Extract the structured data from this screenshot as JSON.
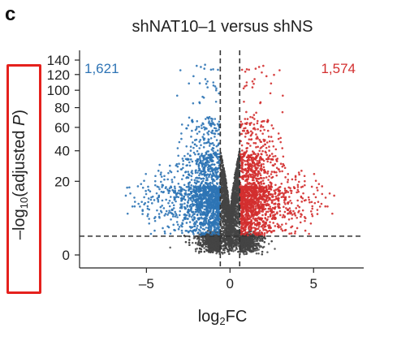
{
  "panel": {
    "letter": "c"
  },
  "annotation": {
    "box_color": "#e5211d"
  },
  "chart_data": {
    "type": "scatter",
    "title": "shNAT10–1 versus shNS",
    "xlabel_main": "log",
    "xlabel_sub": "2",
    "xlabel_tail": "FC",
    "ylabel_prefix": "–log",
    "ylabel_sub": "10",
    "ylabel_mid": "(adjusted ",
    "ylabel_italic": "P",
    "ylabel_suffix": ")",
    "xlim": [
      -9,
      8
    ],
    "x_ticks": [
      -5,
      0,
      5
    ],
    "x_tick_labels": [
      "–5",
      "0",
      "5"
    ],
    "y_ticks": [
      0,
      20,
      40,
      60,
      80,
      100,
      120,
      140
    ],
    "y_tick_labels": [
      "0",
      "20",
      "40",
      "60",
      "80",
      "100",
      "120",
      "140"
    ],
    "y_scale": "compressed (square-root-like)",
    "ylim": [
      0,
      150
    ],
    "fc_thresholds": [
      -0.58,
      0.58
    ],
    "padj_threshold_neglog10": 1.3,
    "grid": false,
    "counts": {
      "down": "1,621",
      "up": "1,574"
    },
    "colors": {
      "down": "#2e74b5",
      "up": "#d32f2f",
      "ns": "#444444"
    },
    "series": [
      {
        "name": "1,621",
        "color": "#2e74b5",
        "n": 1621
      },
      {
        "name": "1,574",
        "color": "#d32f2f",
        "n": 1574
      },
      {
        "color": "#444444",
        "n": 4200
      }
    ]
  }
}
